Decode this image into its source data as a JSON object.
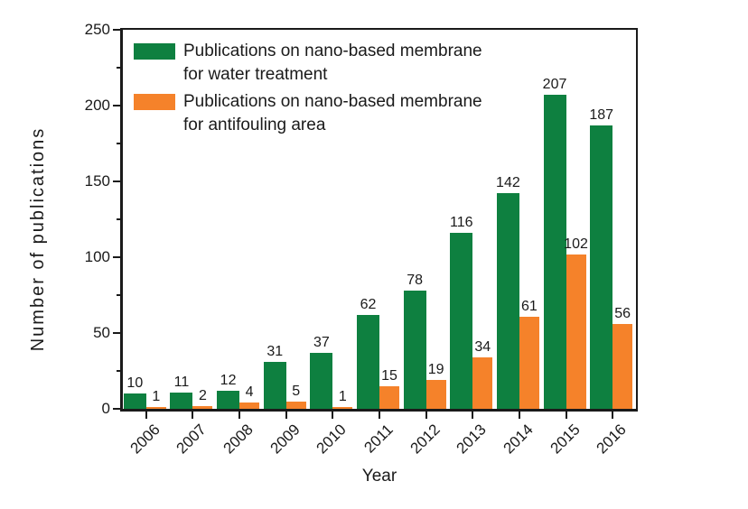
{
  "figure": {
    "background": "#ffffff",
    "axis_color": "#1a1a1a",
    "text_color": "#1a1a1a"
  },
  "chart_data": {
    "type": "bar",
    "title": "",
    "xlabel": "Year",
    "ylabel": "Number of publications",
    "ylim": [
      0,
      250
    ],
    "ytick_major_interval": 50,
    "ytick_minor_interval": 25,
    "ytick_labels": [
      "0",
      "50",
      "100",
      "150",
      "200",
      "250"
    ],
    "grid": false,
    "legend_position": "top-left",
    "categories": [
      "2006",
      "2007",
      "2008",
      "2009",
      "2010",
      "2011",
      "2012",
      "2013",
      "2014",
      "2015",
      "2016"
    ],
    "series": [
      {
        "name": "water-treatment",
        "legend_line1": "Publications on nano-based membrane",
        "legend_line2": "for water treatment",
        "color": "#0e8040",
        "values": [
          10,
          11,
          12,
          31,
          37,
          62,
          78,
          116,
          142,
          207,
          187
        ]
      },
      {
        "name": "antifouling",
        "legend_line1": "Publications on nano-based membrane",
        "legend_line2": "for antifouling area",
        "color": "#f5822a",
        "values": [
          1,
          2,
          4,
          5,
          1,
          15,
          19,
          34,
          61,
          102,
          56
        ]
      }
    ]
  }
}
